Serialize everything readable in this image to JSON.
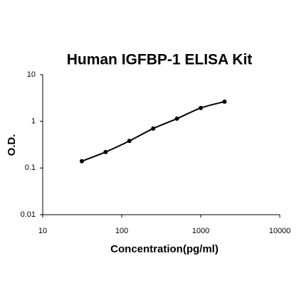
{
  "chart_data": {
    "type": "scatter",
    "title": "Human IGFBP-1 ELISA Kit",
    "x_label": "Concentration(pg/ml)",
    "y_label": "O.D.",
    "x": [
      31.25,
      62.5,
      125,
      250,
      500,
      1000,
      2000
    ],
    "values": [
      0.14,
      0.22,
      0.38,
      0.7,
      1.14,
      1.93,
      2.64
    ],
    "color": "#000000",
    "xlog": true,
    "ylog": true,
    "xlim": [
      10,
      10000
    ],
    "xticks": [
      10,
      100,
      1000,
      10000
    ],
    "ylim": [
      0.01,
      10
    ],
    "yticks": [
      0.01,
      0.1,
      1,
      10
    ]
  }
}
